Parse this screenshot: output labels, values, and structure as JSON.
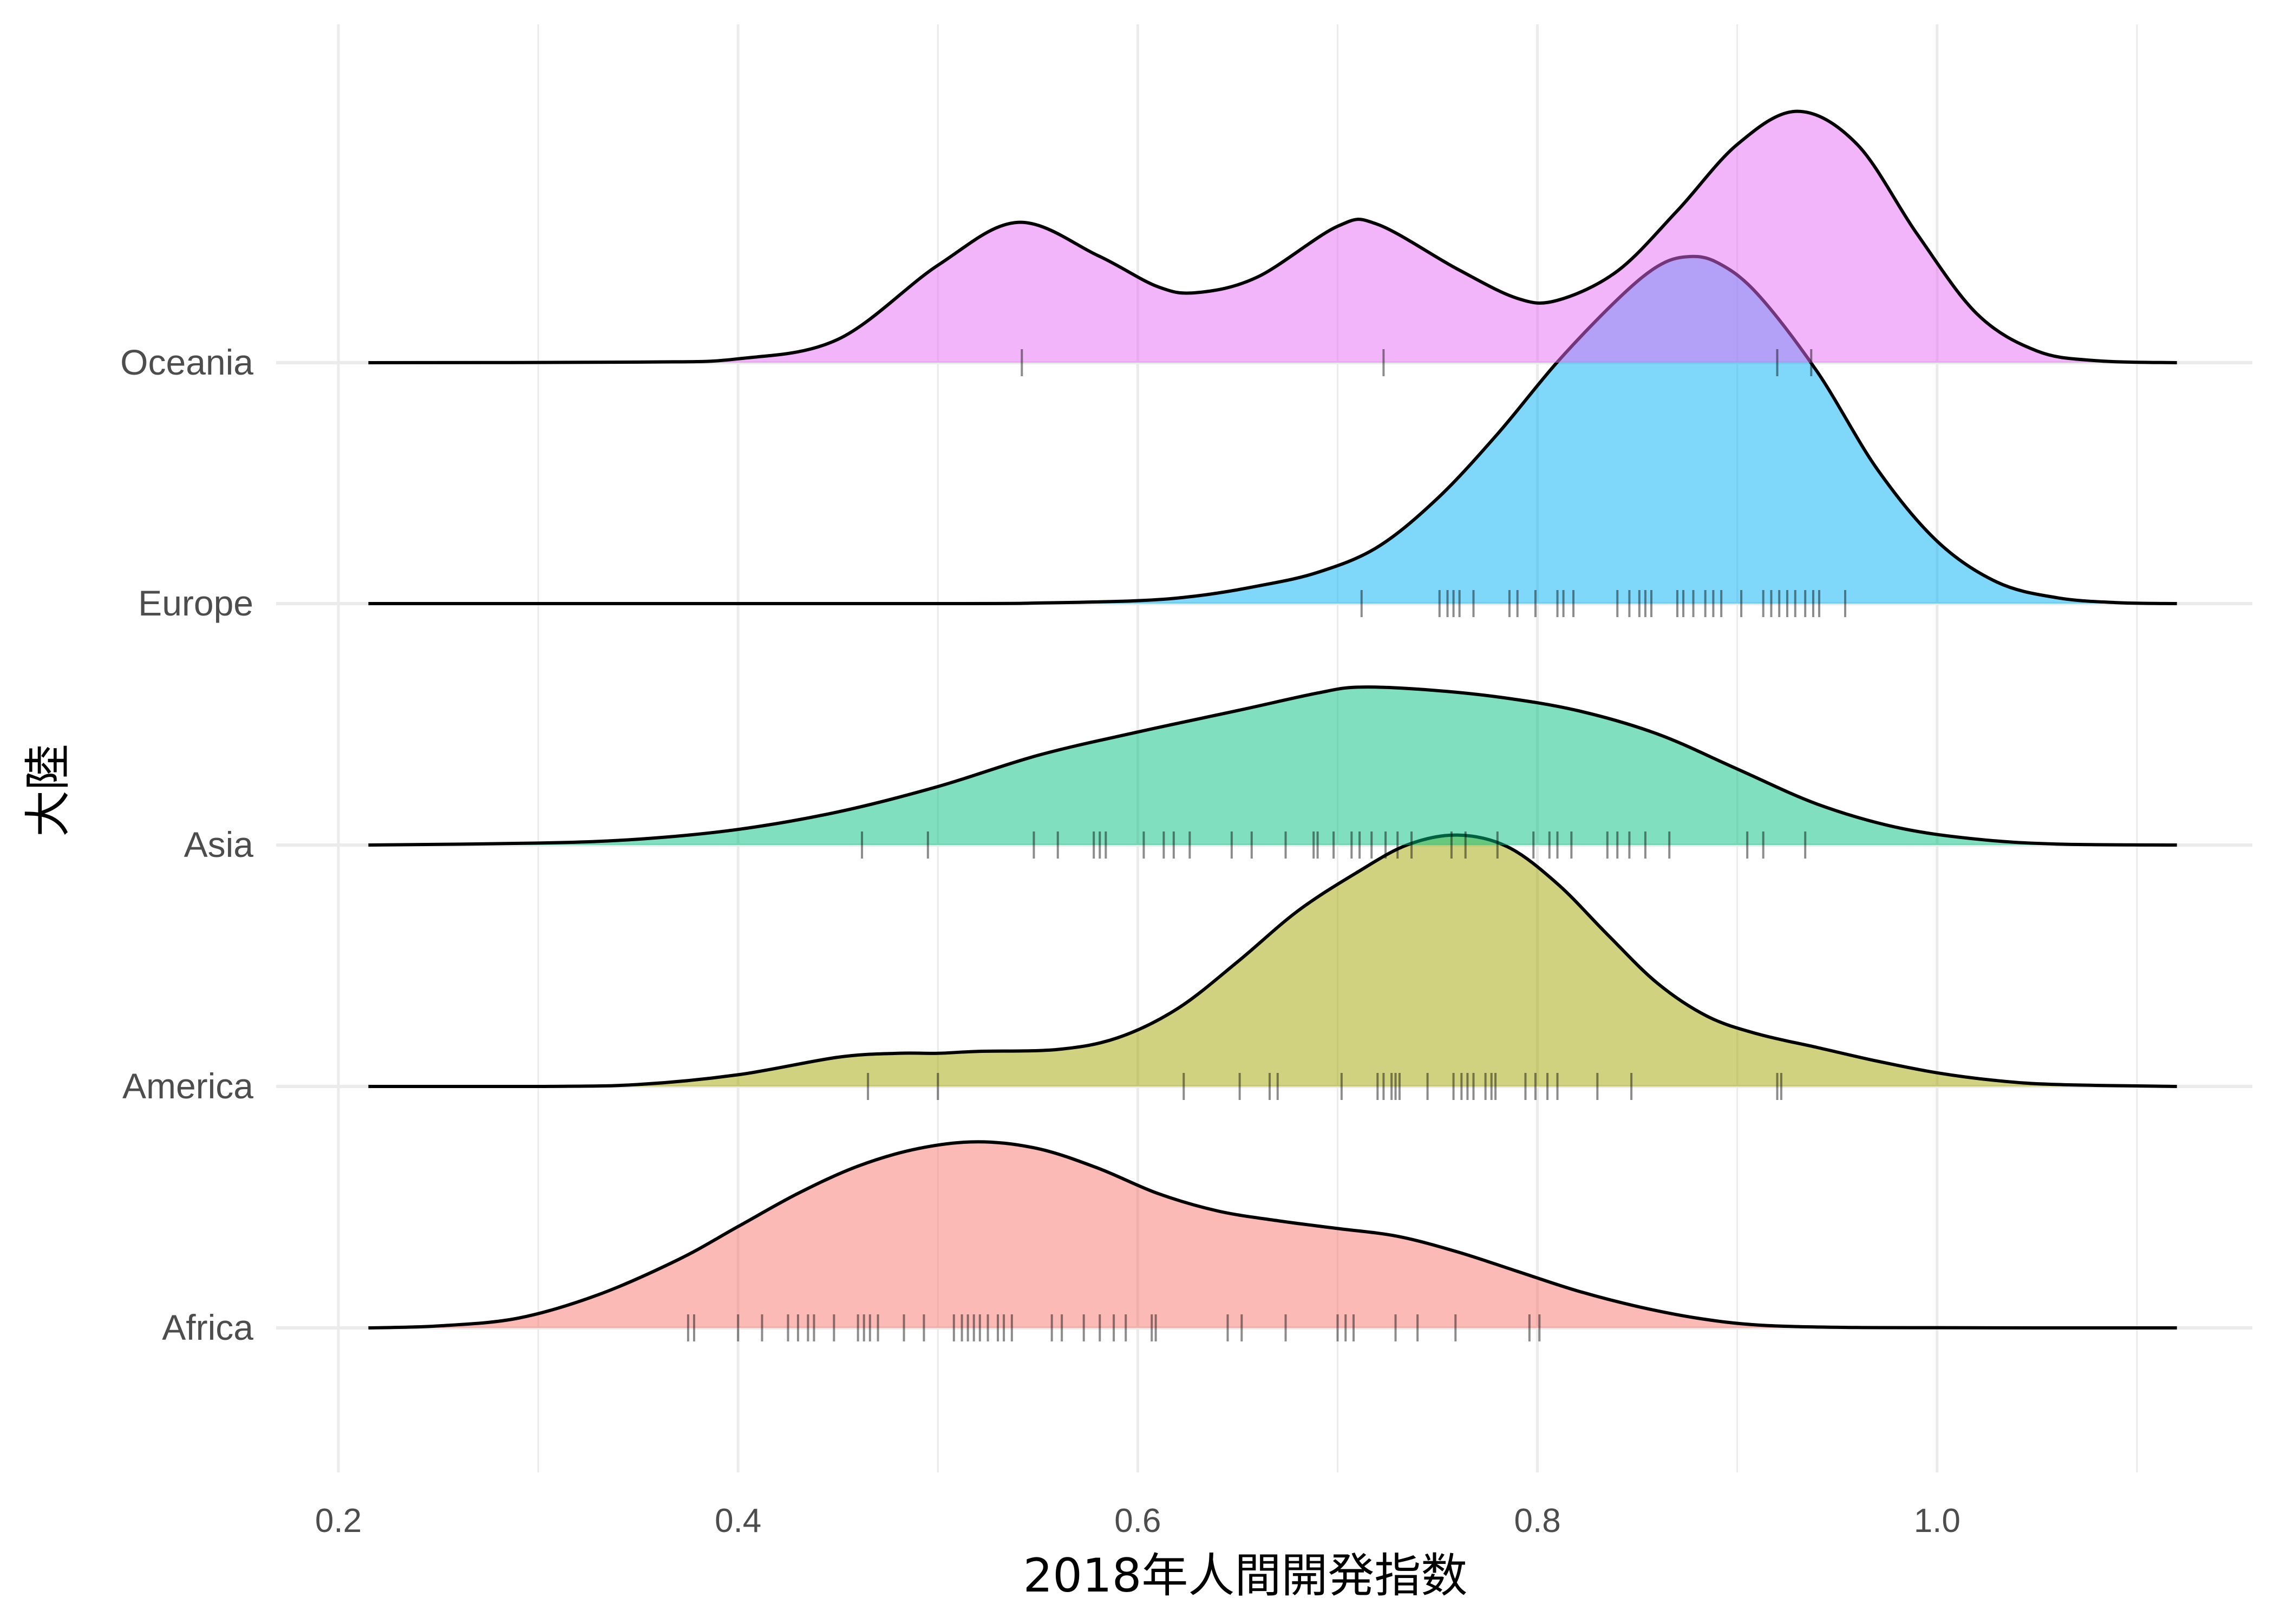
{
  "chart_data": {
    "type": "ridgeline",
    "xlabel": "2018年人間開発指数",
    "ylabel": "大陸",
    "xlim": [
      0.2,
      1.1
    ],
    "x_ticks": [
      0.2,
      0.4,
      0.6,
      0.8,
      1.0
    ],
    "x_tick_labels": [
      "0.2",
      "0.4",
      "0.6",
      "0.8",
      "1.0"
    ],
    "grid": true,
    "legend": "none",
    "series": [
      {
        "name": "Africa",
        "color": "#F8766D",
        "density_curve": [
          [
            0.215,
            0.0
          ],
          [
            0.25,
            0.01
          ],
          [
            0.29,
            0.05
          ],
          [
            0.33,
            0.17
          ],
          [
            0.37,
            0.35
          ],
          [
            0.4,
            0.52
          ],
          [
            0.43,
            0.69
          ],
          [
            0.46,
            0.83
          ],
          [
            0.49,
            0.92
          ],
          [
            0.52,
            0.955
          ],
          [
            0.55,
            0.92
          ],
          [
            0.58,
            0.82
          ],
          [
            0.61,
            0.69
          ],
          [
            0.64,
            0.6
          ],
          [
            0.67,
            0.55
          ],
          [
            0.7,
            0.51
          ],
          [
            0.73,
            0.47
          ],
          [
            0.76,
            0.39
          ],
          [
            0.79,
            0.29
          ],
          [
            0.82,
            0.19
          ],
          [
            0.85,
            0.11
          ],
          [
            0.88,
            0.05
          ],
          [
            0.91,
            0.015
          ],
          [
            0.95,
            0.003
          ],
          [
            1.0,
            0.001
          ],
          [
            1.05,
            0.0
          ],
          [
            1.12,
            0.0
          ]
        ],
        "rug": [
          0.375,
          0.378,
          0.4,
          0.412,
          0.425,
          0.43,
          0.435,
          0.438,
          0.448,
          0.46,
          0.463,
          0.466,
          0.47,
          0.483,
          0.493,
          0.508,
          0.512,
          0.515,
          0.518,
          0.521,
          0.525,
          0.53,
          0.533,
          0.537,
          0.557,
          0.562,
          0.573,
          0.581,
          0.588,
          0.594,
          0.607,
          0.609,
          0.645,
          0.652,
          0.674,
          0.7,
          0.704,
          0.708,
          0.729,
          0.74,
          0.759,
          0.796,
          0.801
        ]
      },
      {
        "name": "America",
        "color": "#A3A500",
        "density_curve": [
          [
            0.215,
            0.0
          ],
          [
            0.3,
            0.0
          ],
          [
            0.35,
            0.01
          ],
          [
            0.4,
            0.06
          ],
          [
            0.45,
            0.15
          ],
          [
            0.48,
            0.17
          ],
          [
            0.5,
            0.17
          ],
          [
            0.52,
            0.18
          ],
          [
            0.56,
            0.19
          ],
          [
            0.59,
            0.25
          ],
          [
            0.62,
            0.4
          ],
          [
            0.65,
            0.64
          ],
          [
            0.68,
            0.9
          ],
          [
            0.71,
            1.1
          ],
          [
            0.735,
            1.24
          ],
          [
            0.76,
            1.29
          ],
          [
            0.785,
            1.23
          ],
          [
            0.81,
            1.04
          ],
          [
            0.835,
            0.78
          ],
          [
            0.86,
            0.53
          ],
          [
            0.885,
            0.36
          ],
          [
            0.91,
            0.27
          ],
          [
            0.94,
            0.2
          ],
          [
            0.97,
            0.13
          ],
          [
            1.0,
            0.07
          ],
          [
            1.03,
            0.03
          ],
          [
            1.06,
            0.01
          ],
          [
            1.12,
            0.0
          ]
        ],
        "rug": [
          0.465,
          0.5,
          0.623,
          0.651,
          0.666,
          0.67,
          0.702,
          0.72,
          0.723,
          0.727,
          0.729,
          0.731,
          0.745,
          0.758,
          0.762,
          0.765,
          0.768,
          0.774,
          0.777,
          0.779,
          0.794,
          0.799,
          0.805,
          0.81,
          0.83,
          0.847,
          0.92,
          0.922
        ]
      },
      {
        "name": "Asia",
        "color": "#00BF7D",
        "density_curve": [
          [
            0.215,
            0.0
          ],
          [
            0.3,
            0.01
          ],
          [
            0.35,
            0.03
          ],
          [
            0.4,
            0.08
          ],
          [
            0.45,
            0.17
          ],
          [
            0.5,
            0.3
          ],
          [
            0.55,
            0.46
          ],
          [
            0.6,
            0.58
          ],
          [
            0.65,
            0.69
          ],
          [
            0.69,
            0.78
          ],
          [
            0.71,
            0.81
          ],
          [
            0.74,
            0.8
          ],
          [
            0.78,
            0.76
          ],
          [
            0.82,
            0.69
          ],
          [
            0.86,
            0.57
          ],
          [
            0.9,
            0.39
          ],
          [
            0.94,
            0.21
          ],
          [
            0.98,
            0.09
          ],
          [
            1.02,
            0.03
          ],
          [
            1.06,
            0.005
          ],
          [
            1.12,
            0.0
          ]
        ],
        "rug": [
          0.462,
          0.495,
          0.548,
          0.56,
          0.578,
          0.581,
          0.584,
          0.603,
          0.613,
          0.618,
          0.626,
          0.647,
          0.657,
          0.674,
          0.688,
          0.69,
          0.698,
          0.707,
          0.711,
          0.717,
          0.724,
          0.73,
          0.737,
          0.757,
          0.764,
          0.78,
          0.798,
          0.806,
          0.81,
          0.817,
          0.835,
          0.84,
          0.846,
          0.854,
          0.866,
          0.905,
          0.913,
          0.934
        ]
      },
      {
        "name": "Europe",
        "color": "#00B0F6",
        "density_curve": [
          [
            0.215,
            0.0
          ],
          [
            0.5,
            0.0
          ],
          [
            0.55,
            0.003
          ],
          [
            0.6,
            0.015
          ],
          [
            0.63,
            0.04
          ],
          [
            0.66,
            0.09
          ],
          [
            0.69,
            0.16
          ],
          [
            0.72,
            0.29
          ],
          [
            0.75,
            0.54
          ],
          [
            0.78,
            0.87
          ],
          [
            0.81,
            1.24
          ],
          [
            0.84,
            1.56
          ],
          [
            0.86,
            1.73
          ],
          [
            0.875,
            1.78
          ],
          [
            0.89,
            1.75
          ],
          [
            0.91,
            1.59
          ],
          [
            0.94,
            1.19
          ],
          [
            0.97,
            0.69
          ],
          [
            1.0,
            0.32
          ],
          [
            1.03,
            0.11
          ],
          [
            1.06,
            0.03
          ],
          [
            1.09,
            0.005
          ],
          [
            1.12,
            0.0
          ]
        ],
        "rug": [
          0.712,
          0.751,
          0.755,
          0.758,
          0.761,
          0.768,
          0.786,
          0.79,
          0.799,
          0.81,
          0.813,
          0.818,
          0.84,
          0.846,
          0.851,
          0.854,
          0.857,
          0.87,
          0.873,
          0.878,
          0.884,
          0.888,
          0.892,
          0.902,
          0.913,
          0.917,
          0.921,
          0.925,
          0.929,
          0.934,
          0.938,
          0.941,
          0.954
        ]
      },
      {
        "name": "Oceania",
        "color": "#E76BF3",
        "density_curve": [
          [
            0.215,
            0.0
          ],
          [
            0.35,
            0.003
          ],
          [
            0.4,
            0.02
          ],
          [
            0.45,
            0.12
          ],
          [
            0.5,
            0.5
          ],
          [
            0.54,
            0.72
          ],
          [
            0.58,
            0.55
          ],
          [
            0.61,
            0.39
          ],
          [
            0.63,
            0.36
          ],
          [
            0.66,
            0.44
          ],
          [
            0.7,
            0.7
          ],
          [
            0.72,
            0.71
          ],
          [
            0.76,
            0.48
          ],
          [
            0.79,
            0.33
          ],
          [
            0.81,
            0.32
          ],
          [
            0.84,
            0.47
          ],
          [
            0.87,
            0.78
          ],
          [
            0.9,
            1.12
          ],
          [
            0.93,
            1.29
          ],
          [
            0.96,
            1.12
          ],
          [
            0.99,
            0.66
          ],
          [
            1.02,
            0.25
          ],
          [
            1.05,
            0.06
          ],
          [
            1.08,
            0.01
          ],
          [
            1.12,
            0.0
          ]
        ],
        "rug": [
          0.542,
          0.723,
          0.92,
          0.937
        ]
      }
    ]
  }
}
